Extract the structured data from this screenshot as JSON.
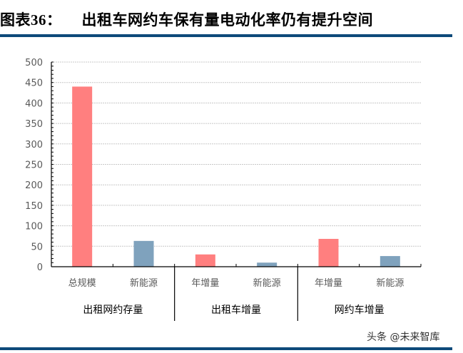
{
  "header": {
    "figure_label": "图表",
    "figure_number": "36",
    "figure_colon": "：",
    "title": "出租车网约车保有量电动化率仍有提升空间"
  },
  "watermark": "头条 @未来智库",
  "colors": {
    "total_bar": "#ff7f7f",
    "ev_bar": "#7fa2bd",
    "rule": "#0d4a7a",
    "grid": "#c8c8c8",
    "axis": "#000000"
  },
  "chart_data": {
    "type": "bar",
    "title": "出租车网约车保有量电动化率仍有提升空间",
    "xlabel": "",
    "ylabel": "",
    "ylim": [
      0,
      500
    ],
    "yticks": [
      0,
      50,
      100,
      150,
      200,
      250,
      300,
      350,
      400,
      450,
      500
    ],
    "grid": true,
    "legend": null,
    "groups": [
      {
        "label": "出租网约存量",
        "categories": [
          "总规模",
          "新能源"
        ],
        "values": [
          440,
          63
        ]
      },
      {
        "label": "出租车增量",
        "categories": [
          "年增量",
          "新能源"
        ],
        "values": [
          30,
          10
        ]
      },
      {
        "label": "网约车增量",
        "categories": [
          "年增量",
          "新能源"
        ],
        "values": [
          68,
          26
        ]
      }
    ],
    "categories": [
      "总规模",
      "新能源",
      "年增量",
      "新能源",
      "年增量",
      "新能源"
    ],
    "values": [
      440,
      63,
      30,
      10,
      68,
      26
    ],
    "bar_colors": [
      "#ff7f7f",
      "#7fa2bd",
      "#ff7f7f",
      "#7fa2bd",
      "#ff7f7f",
      "#7fa2bd"
    ]
  }
}
